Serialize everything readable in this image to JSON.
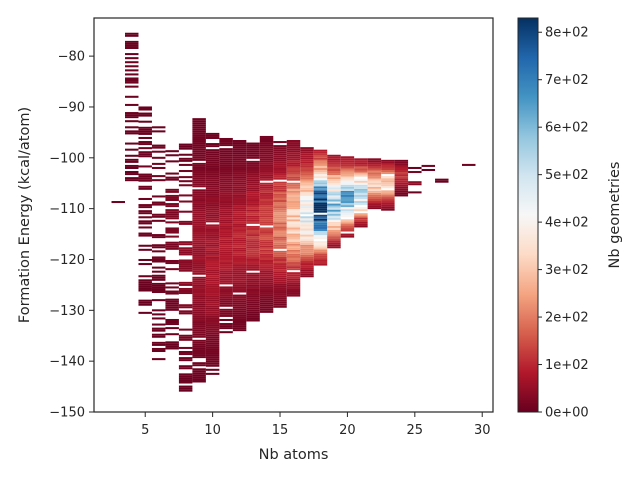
{
  "chart_data": {
    "type": "heatmap",
    "title": "",
    "xlabel": "Nb atoms",
    "ylabel": "Formation Energy (kcal/atom)",
    "xlim": [
      1.2,
      30.8
    ],
    "ylim": [
      -150,
      -72.5
    ],
    "x_ticks": [
      "5",
      "10",
      "15",
      "20",
      "25",
      "30"
    ],
    "x_tick_values": [
      5,
      10,
      15,
      20,
      25,
      30
    ],
    "y_ticks": [
      "−80",
      "−90",
      "−100",
      "−110",
      "−120",
      "−130",
      "−140",
      "−150"
    ],
    "y_tick_values": [
      -80,
      -90,
      -100,
      -110,
      -120,
      -130,
      -140,
      -150
    ],
    "colormap": "RdBu",
    "colorbar": {
      "label": "Nb geometries",
      "range": [
        0,
        830
      ],
      "ticks": [
        "0e+00",
        "1e+02",
        "2e+02",
        "3e+02",
        "4e+02",
        "5e+02",
        "6e+02",
        "7e+02",
        "8e+02"
      ],
      "tick_values": [
        0,
        100,
        200,
        300,
        400,
        500,
        600,
        700,
        800
      ]
    },
    "grid": false,
    "empty_color": "#ffffff",
    "energy_bin_width": 0.4,
    "notes_per_column": "energy range [low, high] occupied by each Nb-atom column; peak = energy of highest count, peak_count = max count",
    "columns": [
      {
        "n": 3,
        "emin": -108.9,
        "emax": -108.7,
        "peak": -108.8,
        "peak_count": 8
      },
      {
        "n": 4,
        "emin": -104.6,
        "emax": -75.7,
        "peak": -85.0,
        "peak_count": 8
      },
      {
        "n": 5,
        "emin": -130.7,
        "emax": -88.3,
        "peak": -104.6,
        "peak_count": 10
      },
      {
        "n": 6,
        "emin": -141.4,
        "emax": -93.0,
        "peak": -101.2,
        "peak_count": 14
      },
      {
        "n": 7,
        "emin": -138.1,
        "emax": -98.2,
        "peak": -110.5,
        "peak_count": 25
      },
      {
        "n": 8,
        "emin": -146.4,
        "emax": -97.1,
        "peak": -117.5,
        "peak_count": 40
      },
      {
        "n": 9,
        "emin": -144.2,
        "emax": -92.3,
        "peak": -120.0,
        "peak_count": 60
      },
      {
        "n": 10,
        "emin": -142.7,
        "emax": -95.1,
        "peak": -121.0,
        "peak_count": 75
      },
      {
        "n": 11,
        "emin": -134.5,
        "emax": -96.1,
        "peak": -118.5,
        "peak_count": 85
      },
      {
        "n": 12,
        "emin": -134.1,
        "emax": -96.8,
        "peak": -116.5,
        "peak_count": 95
      },
      {
        "n": 13,
        "emin": -132.2,
        "emax": -97.1,
        "peak": -115.0,
        "peak_count": 110
      },
      {
        "n": 14,
        "emin": -130.5,
        "emax": -95.7,
        "peak": -114.0,
        "peak_count": 140
      },
      {
        "n": 15,
        "emin": -129.5,
        "emax": -97.0,
        "peak": -113.0,
        "peak_count": 200
      },
      {
        "n": 16,
        "emin": -127.3,
        "emax": -96.6,
        "peak": -113.0,
        "peak_count": 320
      },
      {
        "n": 17,
        "emin": -123.5,
        "emax": -98.1,
        "peak": -112.0,
        "peak_count": 450
      },
      {
        "n": 18,
        "emin": -121.2,
        "emax": -98.5,
        "peak": -110.5,
        "peak_count": 830
      },
      {
        "n": 19,
        "emin": -117.8,
        "emax": -99.4,
        "peak": -110.0,
        "peak_count": 560
      },
      {
        "n": 20,
        "emin": -115.7,
        "emax": -100.0,
        "peak": -108.0,
        "peak_count": 600
      },
      {
        "n": 21,
        "emin": -113.7,
        "emax": -100.1,
        "peak": -107.5,
        "peak_count": 520
      },
      {
        "n": 22,
        "emin": -110.1,
        "emax": -100.3,
        "peak": -105.5,
        "peak_count": 320
      },
      {
        "n": 23,
        "emin": -110.4,
        "emax": -100.4,
        "peak": -105.0,
        "peak_count": 330
      },
      {
        "n": 24,
        "emin": -107.6,
        "emax": -100.5,
        "peak": -103.5,
        "peak_count": 120
      },
      {
        "n": 25,
        "emin": -107.4,
        "emax": -101.8,
        "peak": -105.0,
        "peak_count": 40
      },
      {
        "n": 26,
        "emin": -102.6,
        "emax": -100.7,
        "peak": -101.5,
        "peak_count": 15
      },
      {
        "n": 27,
        "emin": -104.9,
        "emax": -102.6,
        "peak": -103.5,
        "peak_count": 12
      },
      {
        "n": 29,
        "emin": -102.0,
        "emax": -101.4,
        "peak": -101.7,
        "peak_count": 10
      }
    ]
  }
}
